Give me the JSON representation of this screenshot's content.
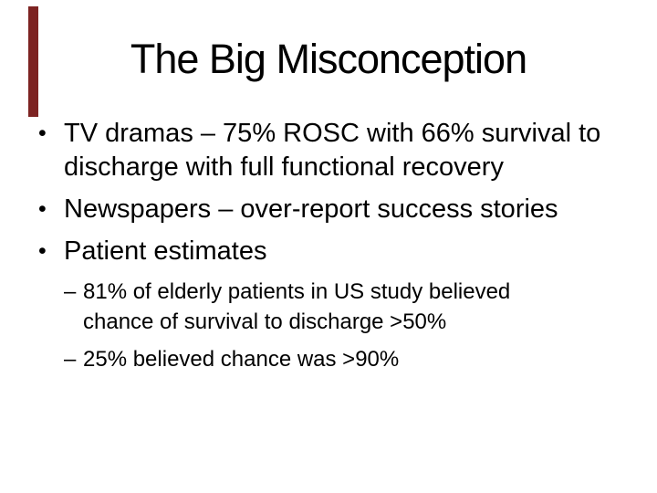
{
  "slide": {
    "title": "The Big Misconception",
    "accent_bar_color": "#7d2322",
    "text_color": "#000000",
    "background_color": "#ffffff",
    "bullets": [
      {
        "level": 1,
        "marker": "•",
        "lines": [
          "TV dramas – 75% ROSC with 66% survival to",
          "discharge with full functional recovery"
        ]
      },
      {
        "level": 1,
        "marker": "•",
        "lines": [
          "Newspapers – over-report success stories"
        ]
      },
      {
        "level": 1,
        "marker": "•",
        "lines": [
          "Patient estimates"
        ]
      },
      {
        "level": 2,
        "marker": "–",
        "lines": [
          "81% of elderly patients in US study believed",
          "chance of survival to discharge >50%"
        ]
      },
      {
        "level": 2,
        "marker": "–",
        "lines": [
          "25% believed chance was >90%"
        ]
      }
    ]
  }
}
